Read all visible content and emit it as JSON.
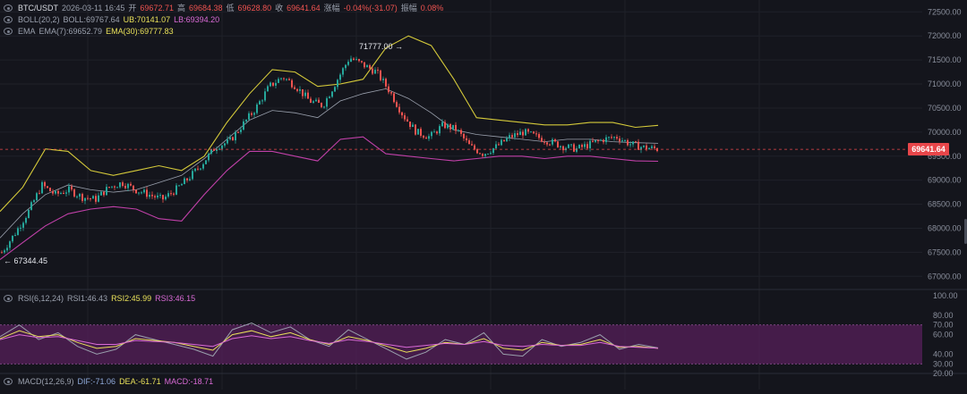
{
  "header": {
    "symbol": "BTC/USDT",
    "datetime": "2026-03-11 16:45",
    "open_label": "开",
    "open_value": "69672.71",
    "high_label": "高",
    "high_value": "69684.38",
    "low_label": "低",
    "low_value": "69628.80",
    "close_label": "收",
    "close_value": "69641.64",
    "change_label": "涨幅",
    "change_value": "-0.04%(-31.07)",
    "amplitude_label": "振幅",
    "amplitude_value": "0.08%"
  },
  "boll": {
    "label": "BOLL(20,2)",
    "mid": "BOLL:69767.64",
    "upper": "UB:70141.07",
    "lower": "LB:69394.20"
  },
  "ema": {
    "label": "EMA",
    "ema7": "EMA(7):69652.79",
    "ema30": "EMA(30):69777.83"
  },
  "rsi": {
    "label": "RSI(6,12,24)",
    "rsi1": "RSI1:46.43",
    "rsi2": "RSI2:45.99",
    "rsi3": "RSI3:46.15"
  },
  "macd": {
    "label": "MACD(12,26,9)",
    "dif": "DIF:-71.06",
    "dea": "DEA:-61.71",
    "macd": "MACD:-18.71"
  },
  "annotations": {
    "high_marker": "71777.00",
    "low_marker": "67344.45",
    "current_price": "69641.64"
  },
  "colors": {
    "up": "#26a69a",
    "down": "#ef5350",
    "upper_band": "#d4c93a",
    "lower_band": "#c040a8",
    "mid_band": "#9aa0ad",
    "rsi_zone": "#5a1f5e"
  },
  "chart_data": [
    {
      "type": "candlestick",
      "title": "BTC/USDT",
      "y_tick_labels": [
        "72500.00",
        "72000.00",
        "71500.00",
        "71000.00",
        "70500.00",
        "70000.00",
        "69500.00",
        "69000.00",
        "68500.00",
        "68000.00",
        "67500.00",
        "67000.00"
      ],
      "ylim": [
        66950,
        72580
      ],
      "grid": true,
      "close_path": [
        67500,
        67900,
        68350,
        68900,
        68700,
        68800,
        68650,
        68600,
        68850,
        68950,
        68800,
        68700,
        68600,
        68800,
        69050,
        69350,
        69700,
        69800,
        70150,
        70500,
        70950,
        71150,
        70950,
        70650,
        70550,
        71050,
        71550,
        71400,
        71250,
        70850,
        70350,
        70000,
        69900,
        70150,
        70050,
        69700,
        69550,
        69700,
        69900,
        70000,
        69900,
        69800,
        69700,
        69650,
        69750,
        69850,
        69900,
        69750,
        69680,
        69650
      ],
      "bands": {
        "upper": [
          68350,
          68850,
          69650,
          69600,
          69200,
          69100,
          69200,
          69300,
          69200,
          69500,
          70200,
          70800,
          71300,
          71250,
          70950,
          71000,
          71100,
          71750,
          72000,
          71800,
          71100,
          70300,
          70250,
          70200,
          70150,
          70150,
          70200,
          70200,
          70100,
          70141.07
        ],
        "middle": [
          67800,
          68300,
          68700,
          68900,
          68800,
          68750,
          68800,
          68950,
          69100,
          69450,
          69850,
          70250,
          70450,
          70400,
          70300,
          70650,
          70800,
          70900,
          70700,
          70400,
          70050,
          69950,
          69900,
          69850,
          69800,
          69850,
          69850,
          69800,
          69780,
          69767.64
        ],
        "lower": [
          67350,
          67700,
          68050,
          68300,
          68400,
          68450,
          68400,
          68200,
          68150,
          68700,
          69200,
          69600,
          69600,
          69500,
          69400,
          69850,
          69900,
          69550,
          69500,
          69450,
          69400,
          69450,
          69500,
          69500,
          69450,
          69500,
          69500,
          69450,
          69400,
          69394.2
        ]
      },
      "high_marker": 71777.0,
      "low_marker": 67344.45,
      "current_price": 69641.64
    },
    {
      "type": "line",
      "title": "RSI(6,12,24)",
      "y_tick_labels": [
        "100.00",
        "80.00",
        "70.00",
        "60.00",
        "40.00",
        "30.00",
        "20.00"
      ],
      "ylim": [
        0,
        100
      ],
      "series": [
        {
          "name": "RSI1",
          "values": [
            58,
            70,
            55,
            62,
            48,
            40,
            45,
            60,
            55,
            50,
            45,
            38,
            65,
            72,
            62,
            68,
            55,
            48,
            65,
            55,
            45,
            35,
            42,
            55,
            50,
            62,
            40,
            38,
            55,
            48,
            52,
            60,
            45,
            50,
            46.43
          ]
        },
        {
          "name": "RSI2",
          "values": [
            56,
            64,
            58,
            60,
            52,
            46,
            48,
            56,
            54,
            52,
            48,
            44,
            60,
            64,
            58,
            62,
            55,
            50,
            58,
            54,
            48,
            42,
            46,
            52,
            50,
            56,
            46,
            44,
            52,
            49,
            50,
            55,
            47,
            48,
            45.99
          ]
        },
        {
          "name": "RSI3",
          "values": [
            55,
            60,
            57,
            58,
            54,
            50,
            50,
            54,
            53,
            52,
            50,
            48,
            56,
            59,
            56,
            58,
            54,
            51,
            55,
            53,
            50,
            47,
            49,
            51,
            50,
            53,
            49,
            48,
            50,
            49,
            49,
            52,
            48,
            47,
            46.15
          ]
        }
      ]
    }
  ]
}
